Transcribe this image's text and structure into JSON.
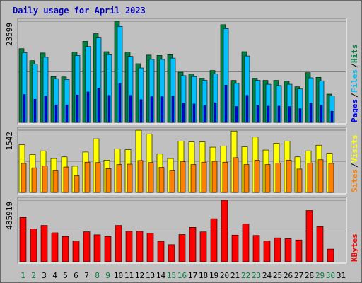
{
  "title": "Daily usage for April 2023",
  "chart_data": {
    "type": "bar",
    "title": "Daily usage for April 2023",
    "categories": [
      "1",
      "2",
      "3",
      "4",
      "5",
      "6",
      "7",
      "8",
      "9",
      "10",
      "11",
      "12",
      "13",
      "14",
      "15",
      "16",
      "17",
      "18",
      "19",
      "20",
      "21",
      "22",
      "23",
      "24",
      "25",
      "26",
      "27",
      "28",
      "29",
      "30",
      "31"
    ],
    "weekend_days": [
      "1",
      "2",
      "8",
      "9",
      "15",
      "16",
      "22",
      "23",
      "29",
      "30"
    ],
    "colors": {
      "hits": "#008040",
      "files": "#00c0ff",
      "pages": "#0000ff",
      "visits": "#ffff00",
      "sites": "#ff8000",
      "kbytes": "#ff0000",
      "title": "#0000b8",
      "weekday_label": "#000000",
      "weekend_label": "#008040"
    },
    "panels": [
      {
        "id": "hits-files-pages",
        "max_label": "23599",
        "ylim": [
          0,
          23599
        ],
        "legend": [
          "Pages",
          "Files",
          "Hits"
        ],
        "series": [
          {
            "name": "Hits",
            "color": "#008040",
            "values": [
              17200,
              14400,
              16200,
              10700,
              10600,
              16400,
              18900,
              20700,
              16500,
              23599,
              16400,
              13700,
              15700,
              15600,
              15800,
              11700,
              11300,
              10300,
              12100,
              22800,
              9800,
              16500,
              10300,
              9800,
              9800,
              9600,
              8300,
              11600,
              10500,
              6600,
              0
            ]
          },
          {
            "name": "Files",
            "color": "#00c0ff",
            "values": [
              16300,
              13600,
              15200,
              10200,
              10000,
              15600,
              17700,
              19700,
              15800,
              22400,
              15400,
              12700,
              14700,
              14700,
              15000,
              10900,
              10700,
              9800,
              11300,
              21900,
              9100,
              15500,
              9800,
              8900,
              8600,
              8900,
              7800,
              10400,
              9700,
              6200,
              0
            ]
          },
          {
            "name": "Pages",
            "color": "#0000ff",
            "values": [
              6500,
              5400,
              6200,
              4100,
              4100,
              6400,
              7100,
              7900,
              6300,
              9000,
              6300,
              5300,
              6000,
              6000,
              6100,
              4500,
              4300,
              3900,
              4600,
              8700,
              3700,
              6300,
              3900,
              3800,
              3800,
              3700,
              3200,
              4500,
              4000,
              2600,
              0
            ]
          }
        ]
      },
      {
        "id": "visits-sites",
        "max_label": "1542",
        "ylim": [
          0,
          1542
        ],
        "legend": [
          "Sites",
          "Visits"
        ],
        "series": [
          {
            "name": "Visits",
            "color": "#ffff00",
            "values": [
              1180,
              940,
              1030,
              840,
              880,
              650,
              1000,
              1330,
              800,
              1080,
              1060,
              1540,
              1450,
              950,
              840,
              1270,
              1250,
              1250,
              1120,
              1150,
              1520,
              1130,
              1370,
              1050,
              1220,
              1270,
              880,
              1030,
              1170,
              970,
              0
            ]
          },
          {
            "name": "Sites",
            "color": "#ff8000",
            "values": [
              720,
              610,
              660,
              550,
              630,
              410,
              750,
              740,
              590,
              690,
              700,
              790,
              740,
              620,
              550,
              760,
              690,
              750,
              770,
              750,
              860,
              690,
              800,
              690,
              730,
              800,
              580,
              730,
              810,
              720,
              0
            ]
          }
        ]
      },
      {
        "id": "kbytes",
        "max_label": "485919",
        "ylim": [
          0,
          485919
        ],
        "legend": [
          "KBytes"
        ],
        "series": [
          {
            "name": "KBytes",
            "color": "#ff0000",
            "values": [
              350000,
              260000,
              287000,
              229000,
              200000,
              164000,
              237000,
              213000,
              200000,
              287000,
              241000,
              241000,
              225000,
              162000,
              135000,
              215000,
              272000,
              236000,
              340000,
              485919,
              211000,
              300000,
              208000,
              164000,
              189000,
              182000,
              172000,
              405000,
              277000,
              100000,
              0
            ]
          }
        ]
      }
    ]
  }
}
